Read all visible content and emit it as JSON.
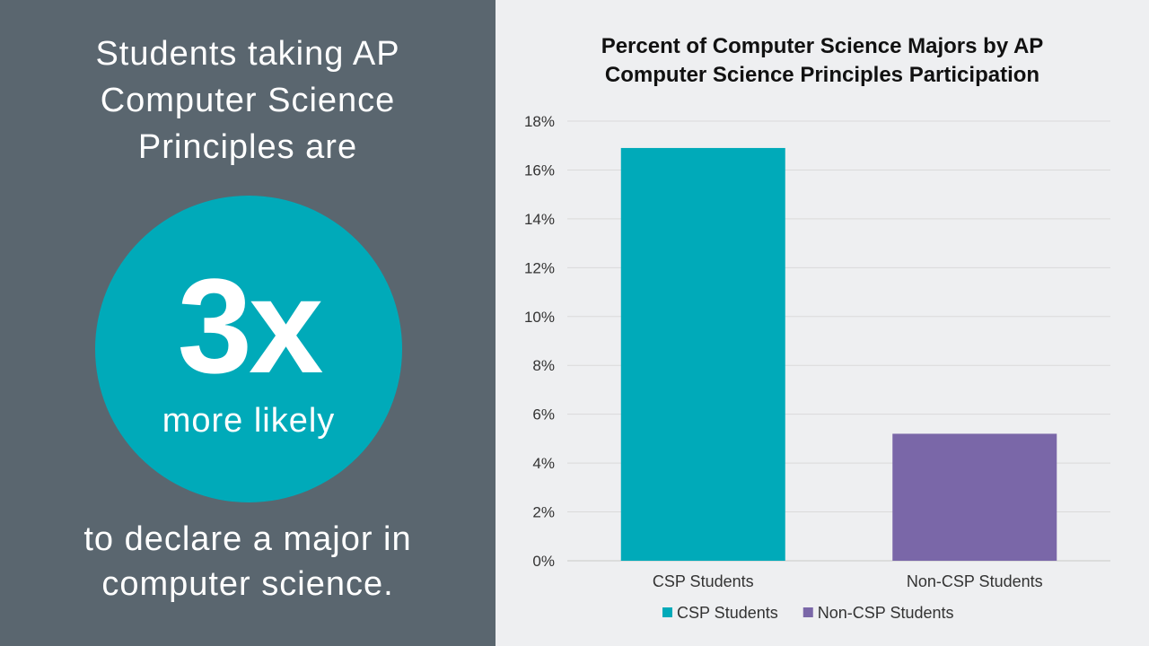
{
  "left_panel": {
    "headline_line1": "Students taking AP",
    "headline_line2": "Computer Science",
    "headline_line3": "Principles are",
    "stat_value": "3x",
    "stat_caption": "more likely",
    "footer_line1": "to declare a major in",
    "footer_line2": "computer science."
  },
  "colors": {
    "left_panel_bg": "#5a666f",
    "circle": "#00aab9",
    "right_panel_bg": "#eeeff1"
  },
  "chart_data": {
    "type": "bar",
    "title_line1": "Percent of Computer Science Majors by AP",
    "title_line2": "Computer Science Principles Participation",
    "categories": [
      "CSP Students",
      "Non-CSP Students"
    ],
    "values": [
      16.9,
      5.2
    ],
    "value_unit": "%",
    "colors": [
      "#00aab9",
      "#7a67a8"
    ],
    "ylim": [
      0,
      18
    ],
    "yticks": [
      0,
      2,
      4,
      6,
      8,
      10,
      12,
      14,
      16,
      18
    ],
    "ytick_labels": [
      "0%",
      "2%",
      "4%",
      "6%",
      "8%",
      "10%",
      "12%",
      "14%",
      "16%",
      "18%"
    ],
    "grid": true,
    "legend": {
      "placement": "bottom",
      "entries": [
        "CSP Students",
        "Non-CSP Students"
      ]
    }
  }
}
